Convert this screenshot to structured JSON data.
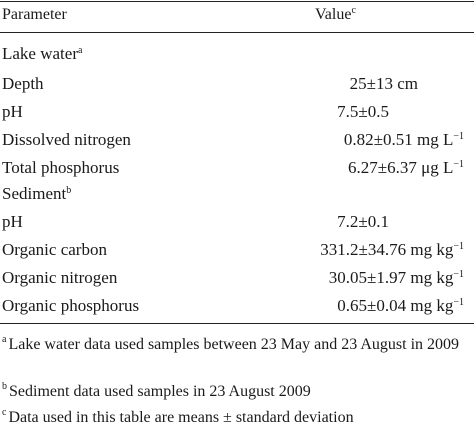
{
  "table": {
    "header": {
      "parameter": "Parameter",
      "value": "Value",
      "value_mark": "c"
    },
    "sections": [
      {
        "title": "Lake water",
        "mark": "a",
        "rows": [
          {
            "name": "Depth",
            "value": "25±13 cm",
            "sup": ""
          },
          {
            "name": "pH",
            "value": "7.5±0.5",
            "sup": ""
          },
          {
            "name": "Dissolved nitrogen",
            "value": "0.82±0.51 mg L",
            "sup": "−1"
          },
          {
            "name": "Total phosphorus",
            "value": "6.27±6.37 μg L",
            "sup": "−1"
          }
        ]
      },
      {
        "title": "Sediment",
        "mark": "b",
        "rows": [
          {
            "name": "pH",
            "value": "7.2±0.1",
            "sup": ""
          },
          {
            "name": "Organic carbon",
            "value": "331.2±34.76 mg kg",
            "sup": "−1"
          },
          {
            "name": "Organic nitrogen",
            "value": "30.05±1.97 mg kg",
            "sup": "−1"
          },
          {
            "name": "Organic phosphorus",
            "value": "0.65±0.04 mg kg",
            "sup": "−1"
          }
        ]
      }
    ]
  },
  "footnotes": [
    {
      "mark": "a",
      "text": "Lake water data used samples between 23 May and 23 August in 2009"
    },
    {
      "mark": "b",
      "text": "Sediment data used samples in 23 August 2009"
    },
    {
      "mark": "c",
      "text": "Data used in this table are means ± standard deviation"
    }
  ]
}
